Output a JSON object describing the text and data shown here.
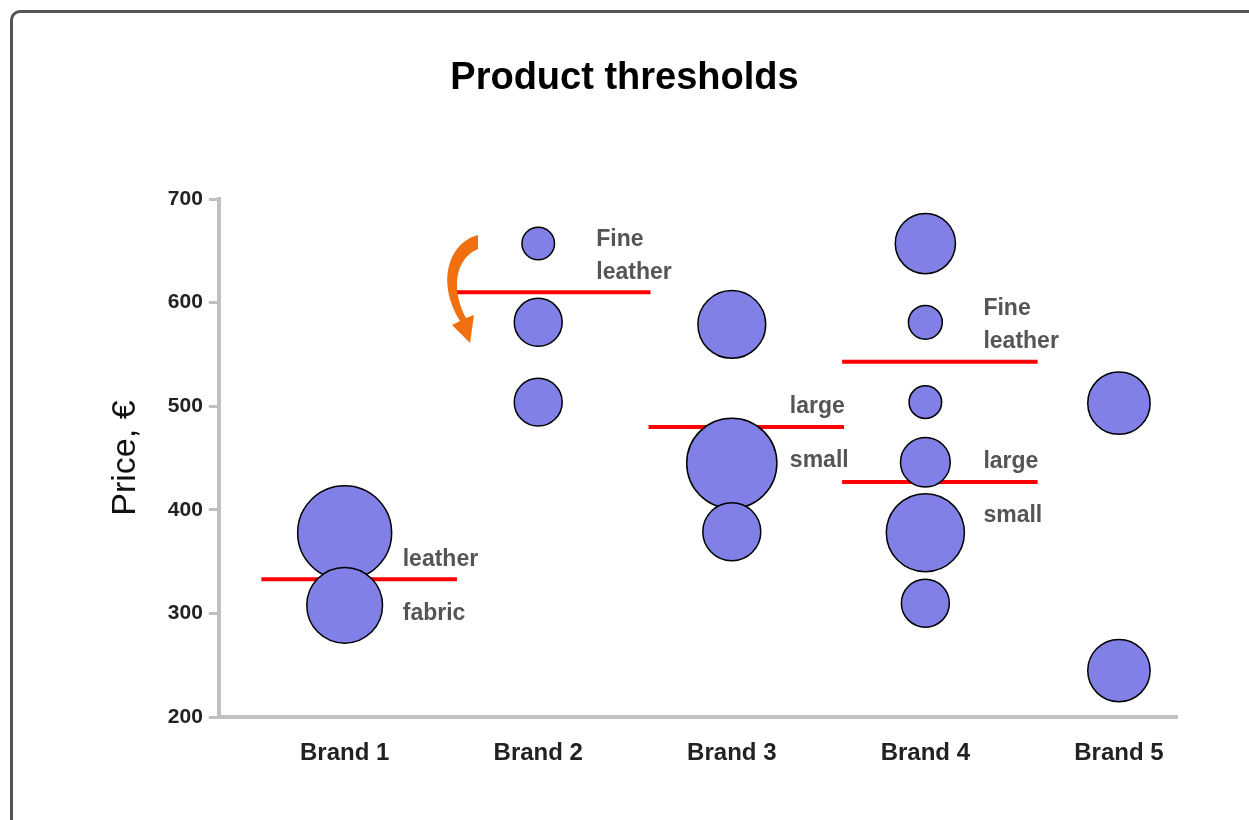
{
  "chart_data": {
    "type": "bubble",
    "title": "Product thresholds",
    "ylabel": "Price, €",
    "categories": [
      "Brand 1",
      "Brand 2",
      "Brand 3",
      "Brand 4",
      "Brand 5"
    ],
    "series": [
      {
        "color": "#8080e6",
        "x": [
          "Brand 1",
          "Brand 1",
          "Brand 2",
          "Brand 2",
          "Brand 2",
          "Brand 3",
          "Brand 3",
          "Brand 3",
          "Brand 4",
          "Brand 4",
          "Brand 4",
          "Brand 4",
          "Brand 4",
          "Brand 4",
          "Brand 5",
          "Brand 5"
        ],
        "values": [
          378,
          308,
          657,
          581,
          504,
          579,
          445,
          379,
          657,
          581,
          504,
          446,
          378,
          310,
          503,
          245
        ],
        "sizes": [
          1,
          0.65,
          0.12,
          0.26,
          0.26,
          0.52,
          0.92,
          0.38,
          0.41,
          0.13,
          0.12,
          0.28,
          0.69,
          0.26,
          0.44,
          0.44
        ]
      }
    ],
    "ylim": [
      200,
      700
    ],
    "yticks": [
      200,
      300,
      400,
      500,
      600,
      700
    ],
    "grid": false,
    "legend": false,
    "ref_lines": [
      {
        "axis": "y",
        "value": 333,
        "color": "#ff0000"
      },
      {
        "axis": "y",
        "value": 610,
        "color": "#ff0000"
      },
      {
        "axis": "y",
        "value": 480,
        "color": "#ff0000"
      },
      {
        "axis": "y",
        "value": 543,
        "color": "#ff0000"
      },
      {
        "axis": "y",
        "value": 427,
        "color": "#ff0000"
      }
    ],
    "annotations": [
      {
        "text": "leather",
        "x": "Brand 1",
        "y": 333
      },
      {
        "text": "fabric",
        "x": "Brand 1",
        "y": 333
      },
      {
        "text": "Fine leather",
        "x": "Brand 2",
        "y": 610
      },
      {
        "text": "large",
        "x": "Brand 3",
        "y": 480
      },
      {
        "text": "small",
        "x": "Brand 3",
        "y": 480
      },
      {
        "text": "Fine leather",
        "x": "Brand 4",
        "y": 543
      },
      {
        "text": "large",
        "x": "Brand 4",
        "y": 427
      },
      {
        "text": "small",
        "x": "Brand 4",
        "y": 427
      }
    ]
  }
}
